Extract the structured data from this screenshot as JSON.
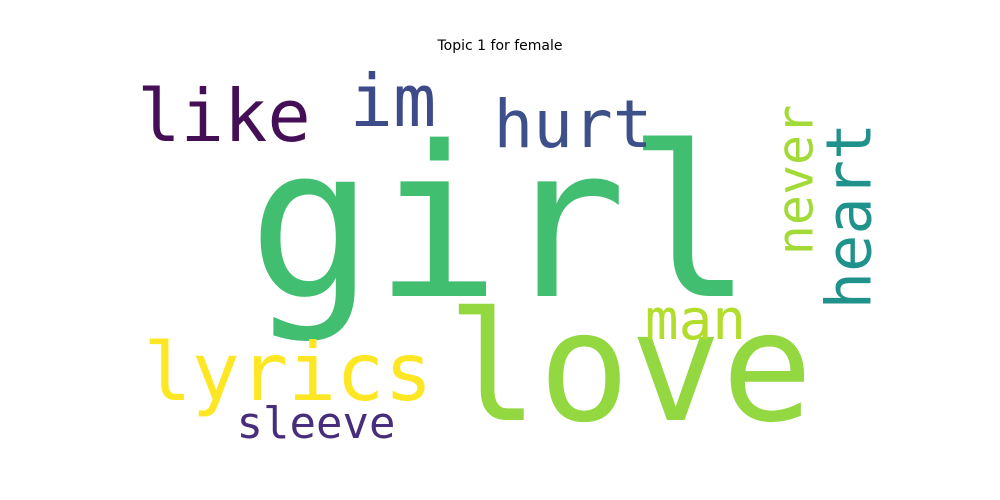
{
  "title": "Topic 1 for female",
  "words": [
    {
      "text": "girl",
      "color": "#42be71",
      "orientation": "horizontal"
    },
    {
      "text": "love",
      "color": "#93d741",
      "orientation": "horizontal"
    },
    {
      "text": "like",
      "color": "#440f57",
      "orientation": "horizontal"
    },
    {
      "text": "im",
      "color": "#3e4b89",
      "orientation": "horizontal"
    },
    {
      "text": "hurt",
      "color": "#3d5089",
      "orientation": "horizontal"
    },
    {
      "text": "never",
      "color": "#a2da37",
      "orientation": "vertical"
    },
    {
      "text": "heart",
      "color": "#20928c",
      "orientation": "vertical"
    },
    {
      "text": "man",
      "color": "#b2dd2d",
      "orientation": "horizontal"
    },
    {
      "text": "lyrics",
      "color": "#fde725",
      "orientation": "horizontal"
    },
    {
      "text": "sleeve",
      "color": "#472e7c",
      "orientation": "horizontal"
    }
  ]
}
